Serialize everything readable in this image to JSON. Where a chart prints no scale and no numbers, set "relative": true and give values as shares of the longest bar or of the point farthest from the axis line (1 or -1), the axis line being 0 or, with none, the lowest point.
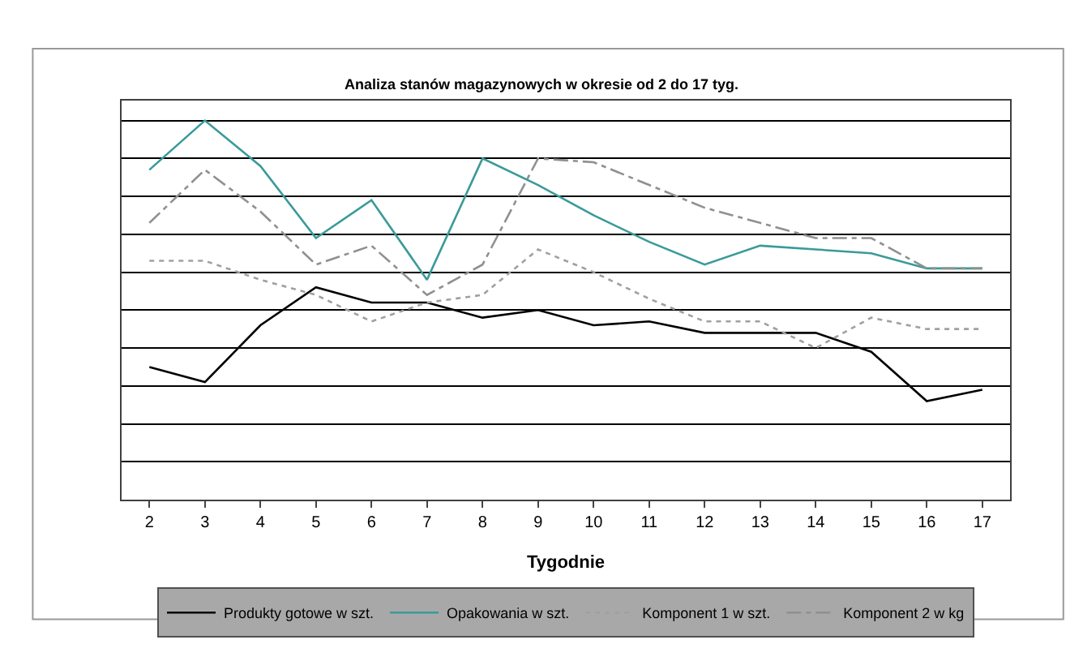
{
  "chart_data": {
    "type": "line",
    "title": "Analiza stanów magazynowych w okresie od 2 do 17 tyg.",
    "xlabel": "Tygodnie",
    "relative": true,
    "grid": "y",
    "legend": "bottom",
    "categories": [
      "2",
      "3",
      "4",
      "5",
      "6",
      "7",
      "8",
      "9",
      "10",
      "11",
      "12",
      "13",
      "14",
      "15",
      "16",
      "17"
    ],
    "series": [
      {
        "name": "Produkty gotowe w szt.",
        "color": "#000000",
        "line_style": "solid",
        "values": [
          0.35,
          0.31,
          0.46,
          0.56,
          0.52,
          0.52,
          0.48,
          0.5,
          0.46,
          0.47,
          0.44,
          0.44,
          0.44,
          0.39,
          0.26,
          0.29
        ]
      },
      {
        "name": "Opakowania w szt.",
        "color": "#3a9a9a",
        "line_style": "solid",
        "values": [
          0.87,
          1.0,
          0.88,
          0.69,
          0.79,
          0.58,
          0.9,
          0.83,
          0.75,
          0.68,
          0.62,
          0.67,
          0.66,
          0.65,
          0.61,
          0.61
        ]
      },
      {
        "name": "Komponent 1 w szt.",
        "color": "#a0a0a0",
        "line_style": "dotted",
        "values": [
          0.63,
          0.63,
          0.58,
          0.54,
          0.47,
          0.52,
          0.54,
          0.66,
          0.6,
          0.53,
          0.47,
          0.47,
          0.4,
          0.48,
          0.45,
          0.45
        ]
      },
      {
        "name": "Komponent 2 w kg",
        "color": "#909090",
        "line_style": "dashdot",
        "values": [
          0.73,
          0.87,
          0.76,
          0.62,
          0.67,
          0.54,
          0.62,
          0.9,
          0.89,
          0.83,
          0.77,
          0.73,
          0.69,
          0.69,
          0.61,
          0.61
        ]
      }
    ]
  }
}
